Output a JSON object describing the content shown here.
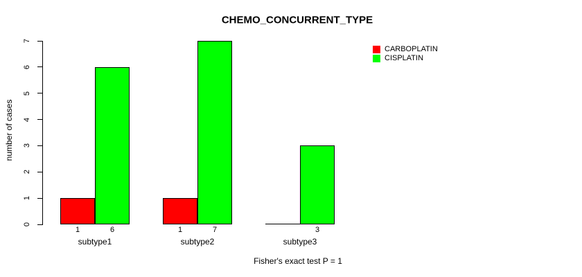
{
  "chart_data": {
    "type": "bar",
    "title": "CHEMO_CONCURRENT_TYPE",
    "categories": [
      "subtype1",
      "subtype2",
      "subtype3"
    ],
    "series": [
      {
        "name": "CARBOPLATIN",
        "color": "#ff0000",
        "values": [
          1,
          1,
          0
        ]
      },
      {
        "name": "CISPLATIN",
        "color": "#00ff00",
        "values": [
          6,
          7,
          3
        ]
      }
    ],
    "bar_value_labels": [
      [
        "1",
        "6"
      ],
      [
        "1",
        "7"
      ],
      [
        "",
        "3"
      ]
    ],
    "xlabel": "",
    "ylabel": "number of cases",
    "ylim": [
      0,
      7
    ],
    "yticks": [
      0,
      1,
      2,
      3,
      4,
      5,
      6,
      7
    ],
    "grid": false,
    "legend_position": "right-outside",
    "annotation": "Fisher's exact test P = 1",
    "colors": {
      "axis": "#000000",
      "bar_border": "#000000",
      "background": "#ffffff",
      "text": "#000000"
    }
  }
}
